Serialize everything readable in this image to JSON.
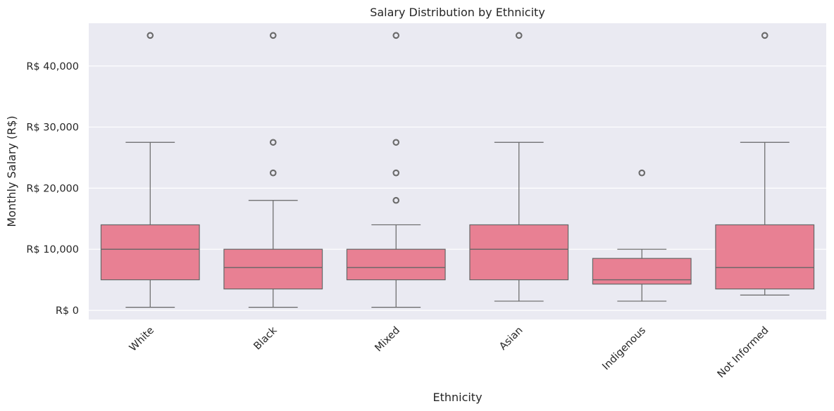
{
  "chart_data": {
    "type": "box",
    "title": "Salary Distribution by Ethnicity",
    "xlabel": "Ethnicity",
    "ylabel": "Monthly Salary (R$)",
    "ylim": [
      -1500,
      47000
    ],
    "yticks": [
      0,
      10000,
      20000,
      30000,
      40000
    ],
    "ytick_labels": [
      "R$ 0",
      "R$ 10,000",
      "R$ 20,000",
      "R$ 30,000",
      "R$ 40,000"
    ],
    "categories": [
      "White",
      "Black",
      "Mixed",
      "Asian",
      "Indigenous",
      "Not Informed"
    ],
    "grid": true,
    "colors": {
      "box_fill": "#E88093",
      "line": "#666666",
      "background": "#EAEAF2",
      "grid": "#FFFFFF",
      "text": "#262626"
    },
    "boxes": [
      {
        "category": "White",
        "whisker_low": 500,
        "q1": 5000,
        "median": 10000,
        "q3": 14000,
        "whisker_high": 27500,
        "outliers": [
          45000
        ]
      },
      {
        "category": "Black",
        "whisker_low": 500,
        "q1": 3500,
        "median": 7000,
        "q3": 10000,
        "whisker_high": 18000,
        "outliers": [
          22500,
          27500,
          45000
        ]
      },
      {
        "category": "Mixed",
        "whisker_low": 500,
        "q1": 5000,
        "median": 7000,
        "q3": 10000,
        "whisker_high": 14000,
        "outliers": [
          18000,
          22500,
          27500,
          45000
        ]
      },
      {
        "category": "Asian",
        "whisker_low": 1500,
        "q1": 5000,
        "median": 10000,
        "q3": 14000,
        "whisker_high": 27500,
        "outliers": [
          45000
        ]
      },
      {
        "category": "Indigenous",
        "whisker_low": 1500,
        "q1": 4300,
        "median": 5000,
        "q3": 8500,
        "whisker_high": 10000,
        "outliers": [
          22500
        ]
      },
      {
        "category": "Not Informed",
        "whisker_low": 2500,
        "q1": 3500,
        "median": 7000,
        "q3": 14000,
        "whisker_high": 27500,
        "outliers": [
          45000
        ]
      }
    ]
  }
}
